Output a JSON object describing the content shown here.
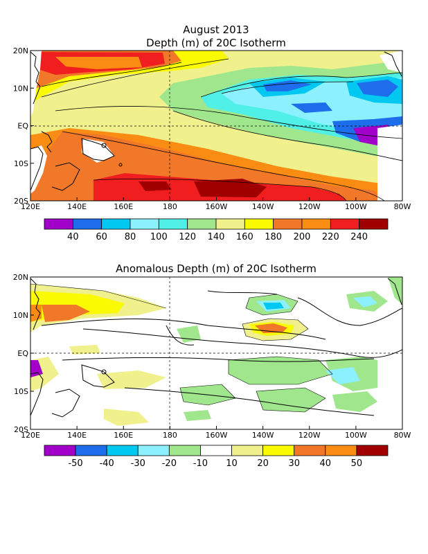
{
  "chart_data": [
    {
      "type": "heatmap",
      "title": "August 2013",
      "subtitle": "Depth (m) of 20C Isotherm",
      "x_ticks": [
        "120E",
        "140E",
        "160E",
        "180",
        "160W",
        "140W",
        "120W",
        "100W",
        "80W"
      ],
      "y_ticks": [
        "20N",
        "10N",
        "EQ",
        "10S",
        "20S"
      ],
      "xlim_lon": [
        120,
        280
      ],
      "ylim_lat": [
        -20,
        20
      ],
      "colorbar": {
        "colors": [
          "#a000c8",
          "#1e6eeb",
          "#00c8f0",
          "#8cf0ff",
          "#50f0e6",
          "#a0e68c",
          "#f0f08c",
          "#fafa00",
          "#f07828",
          "#fa8c14",
          "#f01e1e",
          "#a00000"
        ],
        "labels": [
          "40",
          "60",
          "80",
          "100",
          "120",
          "140",
          "160",
          "180",
          "200",
          "220",
          "240"
        ]
      },
      "series": [
        {
          "lon": 125,
          "lat": 14,
          "v": 210
        },
        {
          "lon": 140,
          "lat": 15,
          "v": 230
        },
        {
          "lon": 160,
          "lat": 16,
          "v": 205
        },
        {
          "lon": 180,
          "lat": 15,
          "v": 170
        },
        {
          "lon": 200,
          "lat": 14,
          "v": 150
        },
        {
          "lon": 220,
          "lat": 13,
          "v": 120
        },
        {
          "lon": 240,
          "lat": 14,
          "v": 100
        },
        {
          "lon": 265,
          "lat": 13,
          "v": 70
        },
        {
          "lon": 130,
          "lat": 8,
          "v": 180
        },
        {
          "lon": 150,
          "lat": 7,
          "v": 150
        },
        {
          "lon": 170,
          "lat": 7,
          "v": 140
        },
        {
          "lon": 190,
          "lat": 8,
          "v": 125
        },
        {
          "lon": 215,
          "lat": 9,
          "v": 60
        },
        {
          "lon": 230,
          "lat": 8,
          "v": 70
        },
        {
          "lon": 255,
          "lat": 7,
          "v": 55
        },
        {
          "lon": 275,
          "lat": 8,
          "v": 65
        },
        {
          "lon": 130,
          "lat": 2,
          "v": 150
        },
        {
          "lon": 155,
          "lat": 2,
          "v": 160
        },
        {
          "lon": 180,
          "lat": 2,
          "v": 150
        },
        {
          "lon": 200,
          "lat": 2,
          "v": 120
        },
        {
          "lon": 225,
          "lat": 2,
          "v": 95
        },
        {
          "lon": 250,
          "lat": 2,
          "v": 70
        },
        {
          "lon": 268,
          "lat": -1,
          "v": 45
        },
        {
          "lon": 150,
          "lat": -5,
          "v": 210
        },
        {
          "lon": 170,
          "lat": -6,
          "v": 205
        },
        {
          "lon": 190,
          "lat": -6,
          "v": 180
        },
        {
          "lon": 215,
          "lat": -6,
          "v": 150
        },
        {
          "lon": 240,
          "lat": -6,
          "v": 120
        },
        {
          "lon": 260,
          "lat": -7,
          "v": 100
        },
        {
          "lon": 165,
          "lat": -14,
          "v": 230
        },
        {
          "lon": 190,
          "lat": -16,
          "v": 245
        },
        {
          "lon": 210,
          "lat": -15,
          "v": 235
        },
        {
          "lon": 235,
          "lat": -13,
          "v": 190
        },
        {
          "lon": 255,
          "lat": -14,
          "v": 140
        }
      ]
    },
    {
      "type": "heatmap",
      "title": "Anomalous Depth (m) of 20C Isotherm",
      "x_ticks": [
        "120E",
        "140E",
        "160E",
        "180",
        "160W",
        "140W",
        "120W",
        "100W",
        "80W"
      ],
      "y_ticks": [
        "20N",
        "10N",
        "EQ",
        "10S",
        "20S"
      ],
      "xlim_lon": [
        120,
        280
      ],
      "ylim_lat": [
        -20,
        20
      ],
      "colorbar": {
        "colors": [
          "#a000c8",
          "#1e6eeb",
          "#00c8f0",
          "#8cf0ff",
          "#a0e68c",
          "#ffffff",
          "#f0f08c",
          "#fafa00",
          "#f07828",
          "#fa8c14",
          "#a00000"
        ],
        "labels": [
          "-50",
          "-40",
          "-30",
          "-20",
          "-10",
          "10",
          "20",
          "30",
          "40",
          "50"
        ]
      },
      "series": [
        {
          "lon": 130,
          "lat": 12,
          "v": 25
        },
        {
          "lon": 140,
          "lat": 9,
          "v": 35
        },
        {
          "lon": 150,
          "lat": 13,
          "v": 22
        },
        {
          "lon": 170,
          "lat": 12,
          "v": 15
        },
        {
          "lon": 215,
          "lat": 12,
          "v": -25
        },
        {
          "lon": 245,
          "lat": 12,
          "v": -15
        },
        {
          "lon": 270,
          "lat": 12,
          "v": -10
        },
        {
          "lon": 215,
          "lat": 6,
          "v": 45
        },
        {
          "lon": 193,
          "lat": 6,
          "v": -15
        },
        {
          "lon": 240,
          "lat": -1,
          "v": -12
        },
        {
          "lon": 265,
          "lat": -2,
          "v": -15
        },
        {
          "lon": 160,
          "lat": -3,
          "v": 15
        },
        {
          "lon": 210,
          "lat": -5,
          "v": -15
        },
        {
          "lon": 225,
          "lat": -7,
          "v": -12
        },
        {
          "lon": 250,
          "lat": -10,
          "v": -22
        },
        {
          "lon": 200,
          "lat": -13,
          "v": -12
        },
        {
          "lon": 240,
          "lat": -16,
          "v": -15
        }
      ]
    }
  ]
}
